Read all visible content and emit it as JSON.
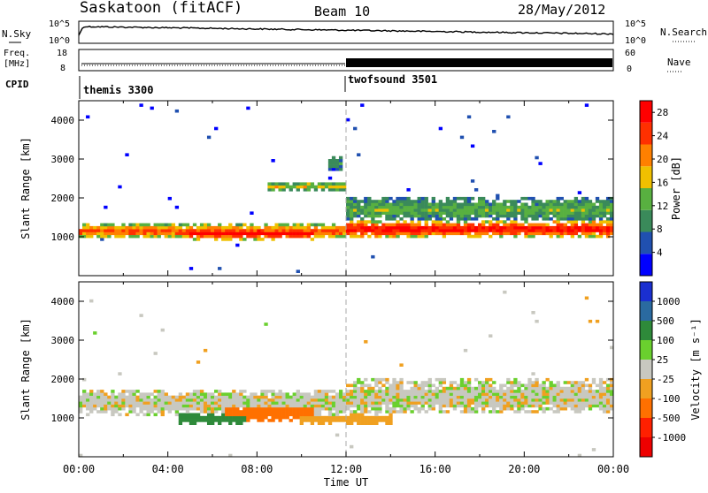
{
  "header": {
    "station": "Saskatoon (fitACF)",
    "beam": "Beam 10",
    "date": "28/May/2012"
  },
  "top_panels": {
    "nsky_label": "N.Sky",
    "nsearch_label": "N.Search",
    "nsky_ticks": [
      "10^5",
      "10^0"
    ],
    "nsearch_ticks": [
      "10^5",
      "10^0"
    ],
    "freq_label_top": "Freq.",
    "freq_label_bottom": "[MHz]",
    "freq_ticks": [
      "18",
      "8"
    ],
    "nave_label": "Nave",
    "nave_ticks": [
      "60",
      "0"
    ],
    "cpid_label": "CPID",
    "programs": [
      {
        "name": "themis 3300",
        "start_hour": 0
      },
      {
        "name": "twofsound 3501",
        "start_hour": 12
      }
    ]
  },
  "chart_data": [
    {
      "type": "heatmap",
      "title": "",
      "xlabel": "Time UT",
      "ylabel": "Slant Range [km]",
      "xlim": [
        0,
        24
      ],
      "ylim": [
        0,
        4500
      ],
      "x_ticks": [
        "00:00",
        "04:00",
        "08:00",
        "12:00",
        "16:00",
        "20:00",
        "00:00"
      ],
      "y_ticks": [
        1000,
        2000,
        3000,
        4000
      ],
      "colorbar": {
        "label": "Power [dB]",
        "ticks": [
          4,
          8,
          12,
          16,
          20,
          24,
          28
        ],
        "range": [
          0,
          30
        ],
        "colors": [
          "#0000ff",
          "#2050b0",
          "#3a8a5a",
          "#58b040",
          "#f0c000",
          "#ff8000",
          "#ff3000",
          "#ff0000"
        ]
      },
      "bands": [
        {
          "x_start": 0,
          "x_end": 12,
          "range_center_km": 1150,
          "range_width_km": 400,
          "level_db": 22
        },
        {
          "x_start": 5,
          "x_end": 10.5,
          "range_center_km": 1100,
          "range_width_km": 350,
          "level_db": 29
        },
        {
          "x_start": 8.5,
          "x_end": 12,
          "range_center_km": 2300,
          "range_width_km": 250,
          "level_db": 16
        },
        {
          "x_start": 11.2,
          "x_end": 11.8,
          "range_center_km": 2900,
          "range_width_km": 350,
          "level_db": 10
        },
        {
          "x_start": 12,
          "x_end": 24,
          "range_center_km": 1200,
          "range_width_km": 450,
          "level_db": 27
        },
        {
          "x_start": 12,
          "x_end": 24,
          "range_center_km": 1700,
          "range_width_km": 700,
          "level_db": 12
        }
      ]
    },
    {
      "type": "heatmap",
      "title": "",
      "xlabel": "Time UT",
      "ylabel": "Slant Range [km]",
      "xlim": [
        0,
        24
      ],
      "ylim": [
        0,
        4500
      ],
      "x_ticks": [
        "00:00",
        "04:00",
        "08:00",
        "12:00",
        "16:00",
        "20:00",
        "00:00"
      ],
      "y_ticks": [
        1000,
        2000,
        3000,
        4000
      ],
      "colorbar": {
        "label": "Velocity [m s⁻¹]",
        "ticks": [
          1000,
          500,
          100,
          25,
          -25,
          -100,
          -500,
          -1000
        ],
        "colors": [
          "#1a2fd0",
          "#2a6aa0",
          "#2e8a3a",
          "#6ad02e",
          "#c8c8c0",
          "#f0a020",
          "#ff7000",
          "#ff2000",
          "#ee0000"
        ]
      },
      "bands": [
        {
          "x_start": 0,
          "x_end": 12,
          "range_center_km": 1400,
          "range_width_km": 700,
          "level": 0
        },
        {
          "x_start": 6.5,
          "x_end": 10.5,
          "range_center_km": 1150,
          "range_width_km": 450,
          "level": -150
        },
        {
          "x_start": 4.5,
          "x_end": 7.5,
          "range_center_km": 1000,
          "range_width_km": 400,
          "level": 150
        },
        {
          "x_start": 10,
          "x_end": 14,
          "range_center_km": 950,
          "range_width_km": 300,
          "level": -60
        },
        {
          "x_start": 12,
          "x_end": 24,
          "range_center_km": 1550,
          "range_width_km": 900,
          "level": 0
        }
      ]
    }
  ]
}
